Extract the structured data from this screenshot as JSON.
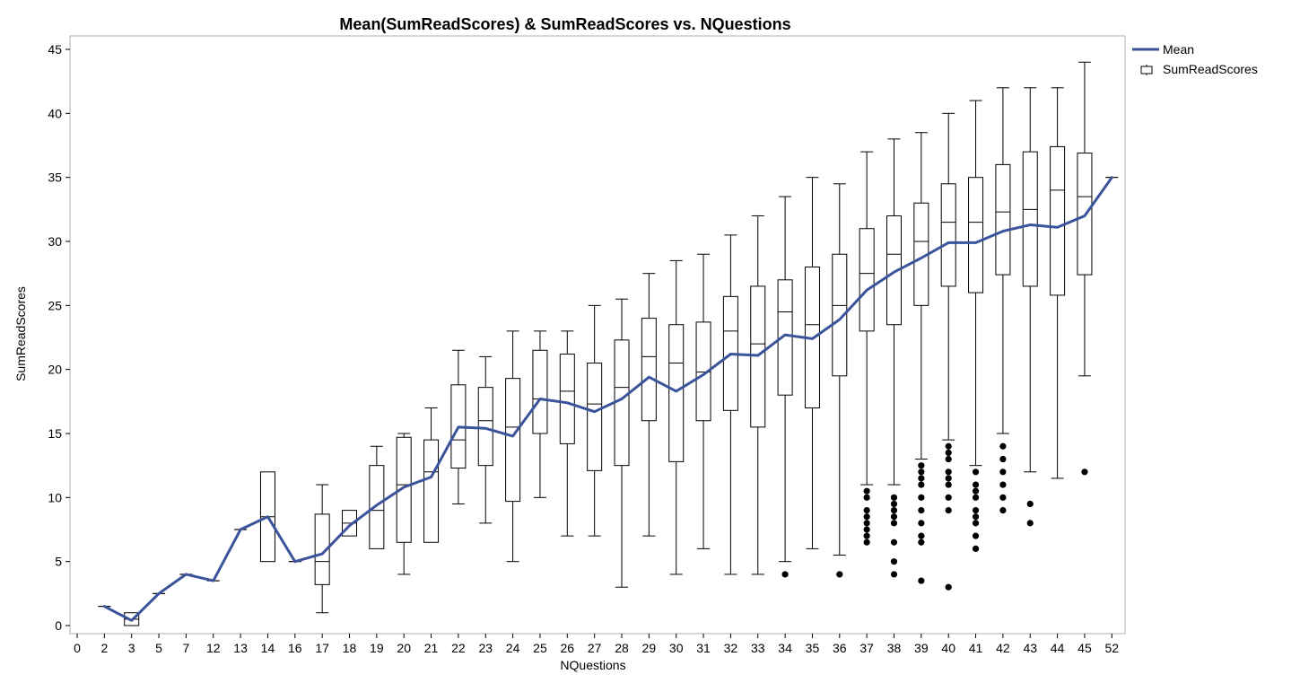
{
  "chart_data": {
    "type": "box",
    "title": "Mean(SumReadScores) & SumReadScores vs. NQuestions",
    "xlabel": "NQuestions",
    "ylabel": "SumReadScores",
    "ylim": [
      0,
      45
    ],
    "yticks": [
      0,
      5,
      10,
      15,
      20,
      25,
      30,
      35,
      40,
      45
    ],
    "grid": false,
    "legend_position": "right",
    "legend": [
      {
        "label": "Mean",
        "kind": "line",
        "color": "#3a539b"
      },
      {
        "label": "SumReadScores",
        "kind": "box",
        "color": "#000000"
      }
    ],
    "categories": [
      "0",
      "2",
      "3",
      "5",
      "7",
      "12",
      "13",
      "14",
      "16",
      "17",
      "18",
      "19",
      "20",
      "21",
      "22",
      "23",
      "24",
      "25",
      "26",
      "27",
      "28",
      "29",
      "30",
      "31",
      "32",
      "33",
      "34",
      "35",
      "36",
      "37",
      "38",
      "39",
      "40",
      "41",
      "42",
      "43",
      "44",
      "45",
      "52"
    ],
    "mean_series": {
      "name": "Mean",
      "color": "#3a539b",
      "categories": [
        "2",
        "3",
        "5",
        "7",
        "12",
        "13",
        "14",
        "16",
        "17",
        "18",
        "19",
        "20",
        "21",
        "22",
        "23",
        "24",
        "25",
        "26",
        "27",
        "28",
        "29",
        "30",
        "31",
        "32",
        "33",
        "34",
        "35",
        "36",
        "37",
        "38",
        "39",
        "40",
        "41",
        "42",
        "43",
        "44",
        "45",
        "52"
      ],
      "values": [
        1.5,
        0.4,
        2.5,
        4,
        3.5,
        7.5,
        8.5,
        5,
        5.6,
        7.8,
        9.4,
        10.8,
        11.6,
        15.5,
        15.4,
        14.8,
        17.7,
        17.4,
        16.7,
        17.7,
        19.4,
        18.3,
        19.6,
        21.2,
        21.1,
        22.7,
        22.4,
        23.9,
        26.2,
        27.6,
        28.7,
        29.9,
        29.9,
        30.8,
        31.3,
        31.1,
        32,
        35
      ]
    },
    "boxes": [
      {
        "x": "2",
        "min": 1.5,
        "q1": 1.5,
        "median": 1.5,
        "q3": 1.5,
        "max": 1.5,
        "outliers": []
      },
      {
        "x": "3",
        "min": 0,
        "q1": 0,
        "median": 0.5,
        "q3": 1,
        "max": 1,
        "outliers": []
      },
      {
        "x": "5",
        "min": 2.5,
        "q1": 2.5,
        "median": 2.5,
        "q3": 2.5,
        "max": 2.5,
        "outliers": []
      },
      {
        "x": "7",
        "min": 4,
        "q1": 4,
        "median": 4,
        "q3": 4,
        "max": 4,
        "outliers": []
      },
      {
        "x": "12",
        "min": 3.5,
        "q1": 3.5,
        "median": 3.5,
        "q3": 3.5,
        "max": 3.5,
        "outliers": []
      },
      {
        "x": "13",
        "min": 7.5,
        "q1": 7.5,
        "median": 7.5,
        "q3": 7.5,
        "max": 7.5,
        "outliers": []
      },
      {
        "x": "14",
        "min": 5,
        "q1": 5,
        "median": 8.5,
        "q3": 12,
        "max": 12,
        "outliers": []
      },
      {
        "x": "16",
        "min": 5,
        "q1": 5,
        "median": 5,
        "q3": 5,
        "max": 5,
        "outliers": []
      },
      {
        "x": "17",
        "min": 1,
        "q1": 3.2,
        "median": 5,
        "q3": 8.7,
        "max": 11,
        "outliers": []
      },
      {
        "x": "18",
        "min": 7,
        "q1": 7,
        "median": 8,
        "q3": 9,
        "max": 9,
        "outliers": []
      },
      {
        "x": "19",
        "min": 6,
        "q1": 6,
        "median": 9,
        "q3": 12.5,
        "max": 14,
        "outliers": []
      },
      {
        "x": "20",
        "min": 4,
        "q1": 6.5,
        "median": 11,
        "q3": 14.7,
        "max": 15,
        "outliers": []
      },
      {
        "x": "21",
        "min": 6.5,
        "q1": 6.5,
        "median": 12,
        "q3": 14.5,
        "max": 17,
        "outliers": []
      },
      {
        "x": "22",
        "min": 9.5,
        "q1": 12.3,
        "median": 14.5,
        "q3": 18.8,
        "max": 21.5,
        "outliers": []
      },
      {
        "x": "23",
        "min": 8,
        "q1": 12.5,
        "median": 16,
        "q3": 18.6,
        "max": 21,
        "outliers": []
      },
      {
        "x": "24",
        "min": 5,
        "q1": 9.7,
        "median": 15.5,
        "q3": 19.3,
        "max": 23,
        "outliers": []
      },
      {
        "x": "25",
        "min": 10,
        "q1": 15,
        "median": 17.7,
        "q3": 21.5,
        "max": 23,
        "outliers": []
      },
      {
        "x": "26",
        "min": 7,
        "q1": 14.2,
        "median": 18.3,
        "q3": 21.2,
        "max": 23,
        "outliers": []
      },
      {
        "x": "27",
        "min": 7,
        "q1": 12.1,
        "median": 17.3,
        "q3": 20.5,
        "max": 25,
        "outliers": []
      },
      {
        "x": "28",
        "min": 3,
        "q1": 12.5,
        "median": 18.6,
        "q3": 22.3,
        "max": 25.5,
        "outliers": []
      },
      {
        "x": "29",
        "min": 7,
        "q1": 16,
        "median": 21,
        "q3": 24,
        "max": 27.5,
        "outliers": []
      },
      {
        "x": "30",
        "min": 4,
        "q1": 12.8,
        "median": 20.5,
        "q3": 23.5,
        "max": 28.5,
        "outliers": []
      },
      {
        "x": "31",
        "min": 6,
        "q1": 16,
        "median": 19.8,
        "q3": 23.7,
        "max": 29,
        "outliers": []
      },
      {
        "x": "32",
        "min": 4,
        "q1": 16.8,
        "median": 23,
        "q3": 25.7,
        "max": 30.5,
        "outliers": []
      },
      {
        "x": "33",
        "min": 4,
        "q1": 15.5,
        "median": 22,
        "q3": 26.5,
        "max": 32,
        "outliers": []
      },
      {
        "x": "34",
        "min": 5,
        "q1": 18,
        "median": 24.5,
        "q3": 27,
        "max": 33.5,
        "outliers": [
          4
        ]
      },
      {
        "x": "35",
        "min": 6,
        "q1": 17,
        "median": 23.5,
        "q3": 28,
        "max": 35,
        "outliers": []
      },
      {
        "x": "36",
        "min": 5.5,
        "q1": 19.5,
        "median": 25,
        "q3": 29,
        "max": 34.5,
        "outliers": [
          4
        ]
      },
      {
        "x": "37",
        "min": 11,
        "q1": 23,
        "median": 27.5,
        "q3": 31,
        "max": 37,
        "outliers": [
          10.5,
          10,
          9,
          8.5,
          8,
          7.5,
          7,
          6.5
        ]
      },
      {
        "x": "38",
        "min": 11,
        "q1": 23.5,
        "median": 29,
        "q3": 32,
        "max": 38,
        "outliers": [
          10,
          9.5,
          9,
          8.5,
          8,
          6.5,
          5,
          4
        ]
      },
      {
        "x": "39",
        "min": 13,
        "q1": 25,
        "median": 30,
        "q3": 33,
        "max": 38.5,
        "outliers": [
          12.5,
          12,
          11.5,
          11,
          10,
          9,
          8,
          7,
          6.5,
          3.5
        ]
      },
      {
        "x": "40",
        "min": 14.5,
        "q1": 26.5,
        "median": 31.5,
        "q3": 34.5,
        "max": 40,
        "outliers": [
          14,
          13.5,
          13,
          12,
          11.5,
          11,
          10,
          9,
          3
        ]
      },
      {
        "x": "41",
        "min": 12.5,
        "q1": 26,
        "median": 31.5,
        "q3": 35,
        "max": 41,
        "outliers": [
          12,
          11,
          10.5,
          10,
          9,
          8.5,
          8,
          7,
          6
        ]
      },
      {
        "x": "42",
        "min": 15,
        "q1": 27.4,
        "median": 32.3,
        "q3": 36,
        "max": 42,
        "outliers": [
          14,
          13,
          12,
          11,
          10,
          9
        ]
      },
      {
        "x": "43",
        "min": 12,
        "q1": 26.5,
        "median": 32.5,
        "q3": 37,
        "max": 42,
        "outliers": [
          9.5,
          8
        ]
      },
      {
        "x": "44",
        "min": 11.5,
        "q1": 25.8,
        "median": 34,
        "q3": 37.4,
        "max": 42,
        "outliers": []
      },
      {
        "x": "45",
        "min": 19.5,
        "q1": 27.4,
        "median": 33.5,
        "q3": 36.9,
        "max": 44,
        "outliers": [
          12
        ]
      },
      {
        "x": "52",
        "min": 35,
        "q1": 35,
        "median": 35,
        "q3": 35,
        "max": 35,
        "outliers": []
      }
    ]
  }
}
